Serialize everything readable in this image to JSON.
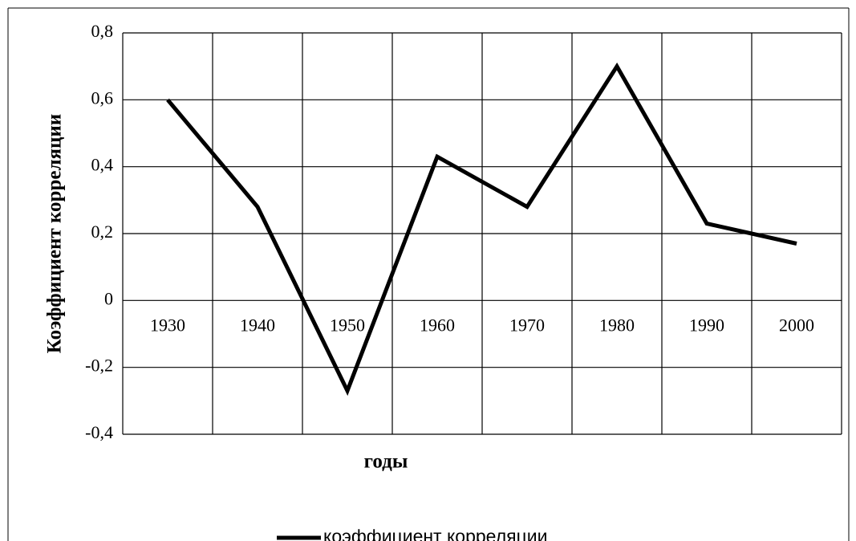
{
  "chart_data": {
    "type": "line",
    "y_axis_label": "Коэффициент корреляции",
    "x_axis_label": "годы",
    "categories": [
      "1930",
      "1940",
      "1950",
      "1960",
      "1970",
      "1980",
      "1990",
      "2000"
    ],
    "series": [
      {
        "name": "коэффициент корреляции",
        "color": "#000000",
        "values": [
          0.6,
          0.28,
          -0.27,
          0.43,
          0.28,
          0.7,
          0.23,
          0.17
        ]
      }
    ],
    "ylim": [
      -0.4,
      0.8
    ],
    "yticks": [
      {
        "value": -0.4,
        "label": "-0,4"
      },
      {
        "value": -0.2,
        "label": "-0,2"
      },
      0,
      {
        "value": 0.2,
        "label": "0,2"
      },
      {
        "value": 0.4,
        "label": "0,4"
      },
      {
        "value": 0.6,
        "label": "0,6"
      },
      {
        "value": 0.8,
        "label": "0,8"
      }
    ],
    "grid": true,
    "legend": "bottom"
  }
}
